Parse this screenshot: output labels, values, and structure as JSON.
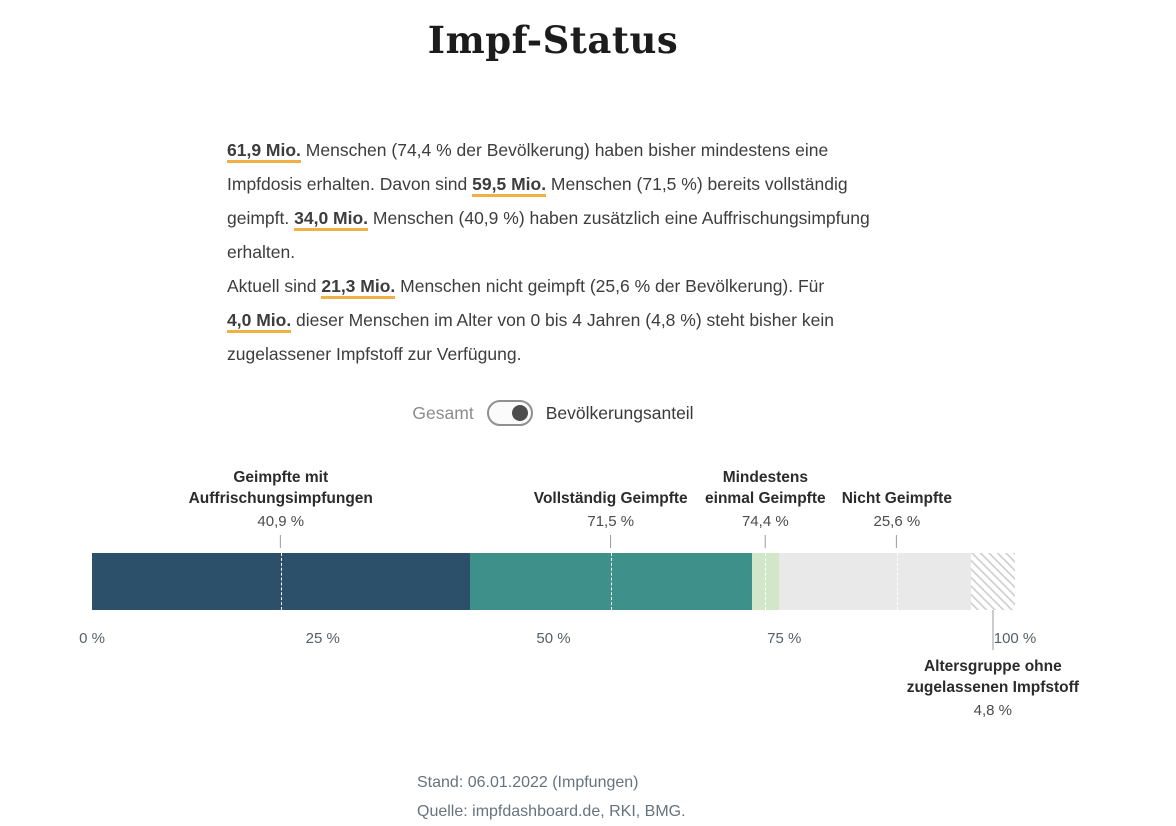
{
  "page": {
    "title": "Impf-Status"
  },
  "colors": {
    "highlight_underline": "#efb143",
    "toggle_knob": "#4d4d4d",
    "toggle_border": "#909090"
  },
  "intro": {
    "paragraphs": [
      {
        "segments": [
          {
            "text": "61,9 Mio.",
            "highlight": true
          },
          {
            "text": " Menschen (74,4 % der Bevölkerung) haben bisher mindestens eine Impfdosis erhalten. Davon sind ",
            "highlight": false
          },
          {
            "text": "59,5 Mio.",
            "highlight": true
          },
          {
            "text": " Menschen (71,5 %) bereits vollständig geimpft. ",
            "highlight": false
          },
          {
            "text": "34,0 Mio.",
            "highlight": true
          },
          {
            "text": " Menschen (40,9 %) haben zusätzlich eine Auffrischungsimpfung erhalten.",
            "highlight": false
          }
        ]
      },
      {
        "segments": [
          {
            "text": "Aktuell sind ",
            "highlight": false
          },
          {
            "text": "21,3 Mio.",
            "highlight": true
          },
          {
            "text": " Menschen nicht geimpft (25,6 % der Bevölkerung). Für ",
            "highlight": false
          },
          {
            "text": "4,0 Mio.",
            "highlight": true
          },
          {
            "text": " dieser Menschen im Alter von 0 bis 4 Jahren (4,8 %) steht bisher kein zugelassener Impfstoff zur Verfügung.",
            "highlight": false
          }
        ]
      }
    ]
  },
  "toggle": {
    "left_label": "Gesamt",
    "right_label": "Bevölkerungsanteil",
    "selected": "Bevölkerungsanteil"
  },
  "chart_data": {
    "type": "bar",
    "subtype": "stacked_horizontal",
    "unit": "%",
    "xlim": [
      0,
      100
    ],
    "axis_ticks": [
      {
        "value": 0,
        "label": "0 %"
      },
      {
        "value": 25,
        "label": "25 %"
      },
      {
        "value": 50,
        "label": "50 %"
      },
      {
        "value": 75,
        "label": "75 %"
      },
      {
        "value": 100,
        "label": "100 %"
      }
    ],
    "segments": [
      {
        "name_lines": [
          "Geimpfte mit",
          "Auffrischungsimpfungen"
        ],
        "value": 40.9,
        "value_label": "40,9 %",
        "start": 0,
        "end": 40.9,
        "color": "#2c4f6a",
        "dash_color": "#ffffff"
      },
      {
        "name_lines": [
          "Vollständig Geimpfte"
        ],
        "value": 71.5,
        "value_label": "71,5 %",
        "start": 40.9,
        "end": 71.5,
        "color": "#3e918b",
        "dash_color": "#ffffff"
      },
      {
        "name_lines": [
          "Mindestens",
          "einmal Geimpfte"
        ],
        "value": 74.4,
        "value_label": "74,4 %",
        "start": 71.5,
        "end": 74.4,
        "color": "#d2e7c8",
        "dash_color": "#ffffff"
      },
      {
        "name_lines": [
          "Nicht Geimpfte"
        ],
        "value": 25.6,
        "value_label": "25,6 %",
        "start": 74.4,
        "end": 100,
        "color": "#e9e9e9",
        "dash_color": "#ffffff"
      }
    ],
    "hatched_overlay": {
      "name_lines": [
        "Altersgruppe ohne",
        "zugelassenen Impfstoff"
      ],
      "value": 4.8,
      "value_label": "4,8 %",
      "start": 95.2,
      "end": 100,
      "stripe_color": "#d2d2d2"
    }
  },
  "footer": {
    "stand": "Stand: 06.01.2022 (Impfungen)",
    "quelle": "Quelle: impfdashboard.de, RKI, BMG."
  }
}
